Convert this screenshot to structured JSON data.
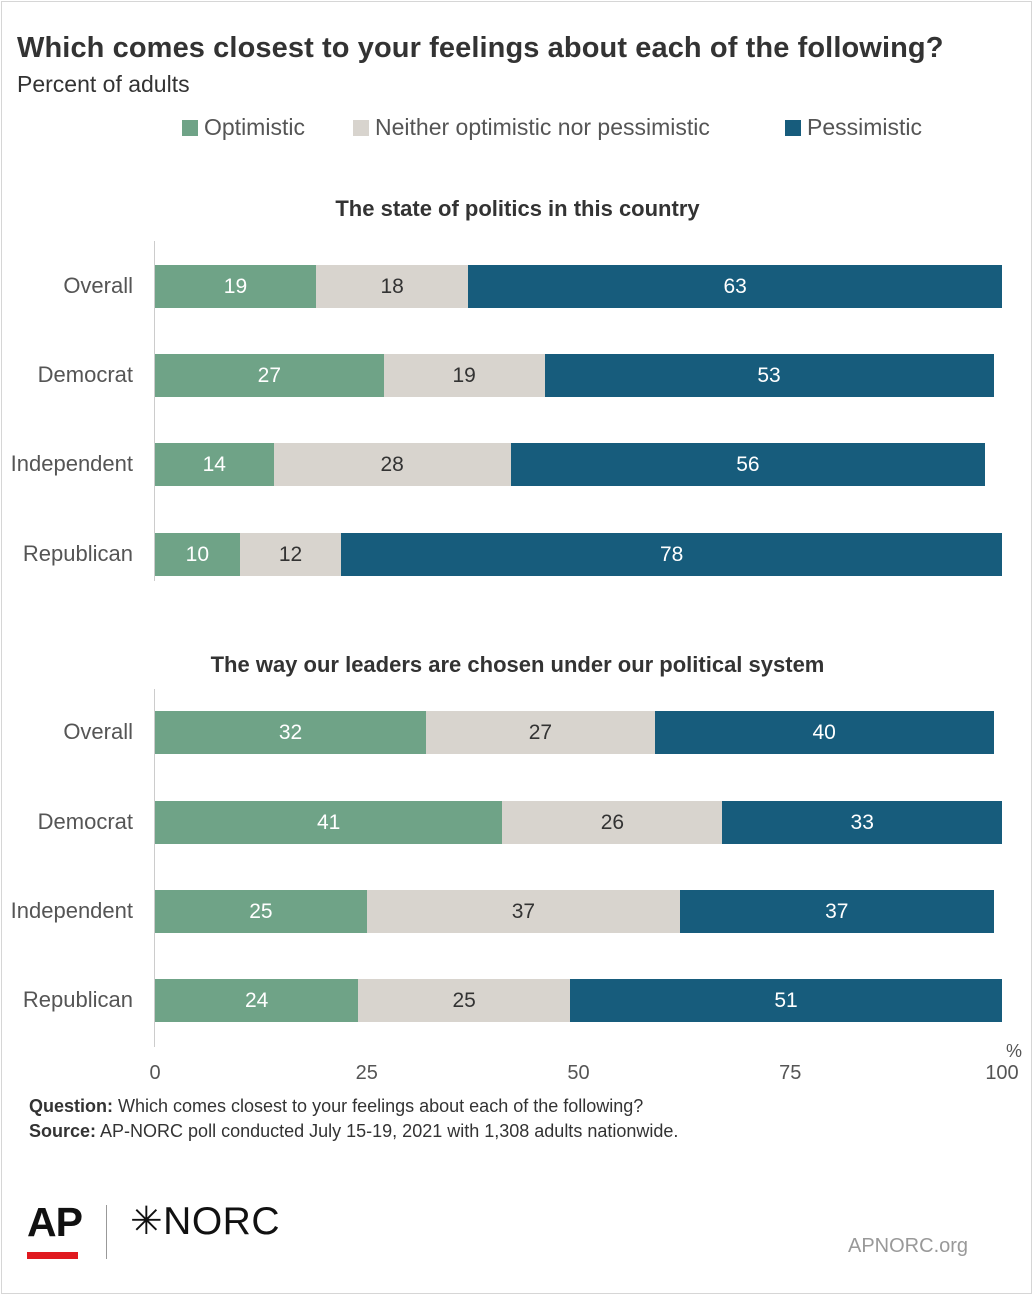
{
  "title": "Which comes closest to your feelings about each of the following?",
  "subtitle": "Percent of adults",
  "legend": [
    {
      "label": "Optimistic",
      "color": "#6fa387"
    },
    {
      "label": "Neither optimistic nor pessimistic",
      "color": "#d8d4ce"
    },
    {
      "label": "Pessimistic",
      "color": "#175c7c"
    }
  ],
  "chart_data": [
    {
      "type": "bar",
      "title": "The state of politics in this country",
      "categories": [
        "Overall",
        "Democrat",
        "Independent",
        "Republican"
      ],
      "series": [
        {
          "name": "Optimistic",
          "values": [
            19,
            27,
            14,
            10
          ]
        },
        {
          "name": "Neither optimistic nor pessimistic",
          "values": [
            18,
            19,
            28,
            12
          ]
        },
        {
          "name": "Pessimistic",
          "values": [
            63,
            53,
            56,
            78
          ]
        }
      ],
      "stacked": true,
      "orientation": "horizontal",
      "xlim": [
        0,
        100
      ],
      "xticks": [
        "0",
        "25",
        "50",
        "75",
        "100"
      ],
      "xunit": "%"
    },
    {
      "type": "bar",
      "title": "The way our leaders are chosen under our political system",
      "categories": [
        "Overall",
        "Democrat",
        "Independent",
        "Republican"
      ],
      "series": [
        {
          "name": "Optimistic",
          "values": [
            32,
            41,
            25,
            24
          ]
        },
        {
          "name": "Neither optimistic nor pessimistic",
          "values": [
            27,
            26,
            37,
            25
          ]
        },
        {
          "name": "Pessimistic",
          "values": [
            40,
            33,
            37,
            51
          ]
        }
      ],
      "stacked": true,
      "orientation": "horizontal",
      "xlim": [
        0,
        100
      ],
      "xticks": [
        "0",
        "25",
        "50",
        "75",
        "100"
      ],
      "xunit": "%"
    }
  ],
  "notes": {
    "question_label": "Question:",
    "question_text": " Which comes closest to your feelings about each of the following?",
    "source_label": "Source:",
    "source_text": " AP-NORC poll conducted July 15-19, 2021 with 1,308 adults nationwide."
  },
  "footer": {
    "ap_logo": "AP",
    "norc_logo": "✳NORC",
    "site": "APNORC.org"
  }
}
